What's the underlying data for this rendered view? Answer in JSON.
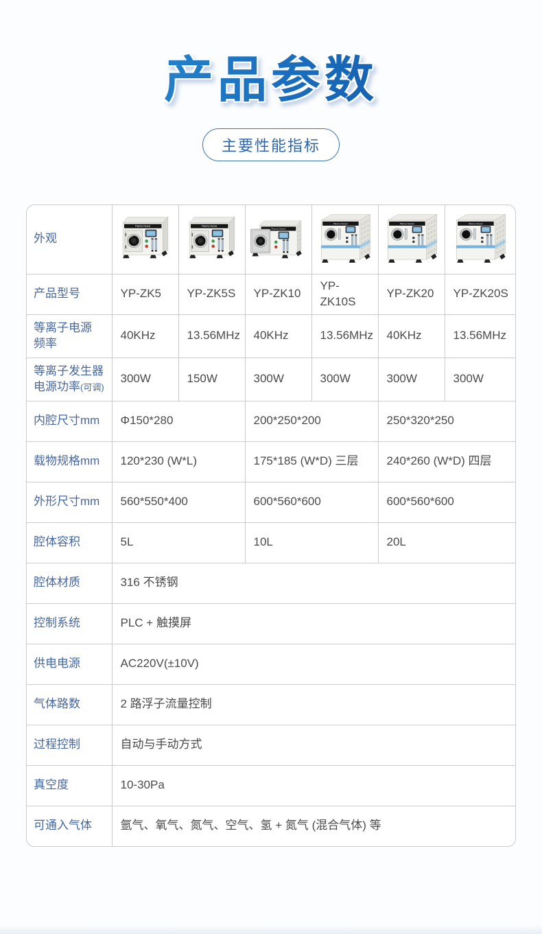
{
  "page": {
    "title": "产品参数",
    "badge": "主要性能指标"
  },
  "colors": {
    "accent": "#2f66ad",
    "label": "#46679f",
    "value": "#4a4a4a",
    "border": "#cccccc",
    "grad1": "#2e9ad8",
    "grad2": "#1a6cbc",
    "grad3": "#114e9d",
    "machine_stripe": "#74b3dd"
  },
  "table": {
    "appearance_label": "外观",
    "machine_brand": "Plasma Cleaner",
    "machine_types": [
      "small",
      "small",
      "small-open",
      "large",
      "large",
      "large"
    ],
    "models_label": "产品型号",
    "models": [
      "YP-ZK5",
      "YP-ZK5S",
      "YP-ZK10",
      "YP-ZK10S",
      "YP-ZK20",
      "YP-ZK20S"
    ],
    "rows6": [
      {
        "label": "等离子电源\n频率",
        "label_suffix": "",
        "values": [
          "40KHz",
          "13.56MHz",
          "40KHz",
          "13.56MHz",
          "40KHz",
          "13.56MHz"
        ]
      },
      {
        "label": "等离子发生器\n电源功率",
        "label_suffix": "(可调)",
        "values": [
          "300W",
          "150W",
          "300W",
          "300W",
          "300W",
          "300W"
        ]
      }
    ],
    "rows3": [
      {
        "label": "内腔尺寸mm",
        "values": [
          "Φ150*280",
          "200*250*200",
          "250*320*250"
        ]
      },
      {
        "label": "载物规格mm",
        "values": [
          "120*230 (W*L)",
          "175*185 (W*D) 三层",
          "240*260 (W*D) 四层"
        ]
      },
      {
        "label": "外形尺寸mm",
        "values": [
          "560*550*400",
          "600*560*600",
          "600*560*600"
        ]
      },
      {
        "label": "腔体容积",
        "values": [
          "5L",
          "10L",
          "20L"
        ]
      }
    ],
    "rows1": [
      {
        "label": "腔体材质",
        "value": "316 不锈钢"
      },
      {
        "label": "控制系统",
        "value": "PLC + 触摸屏"
      },
      {
        "label": "供电电源",
        "value": "AC220V(±10V)"
      },
      {
        "label": "气体路数",
        "value": "2 路浮子流量控制"
      },
      {
        "label": "过程控制",
        "value": "自动与手动方式"
      },
      {
        "label": "真空度",
        "value": "10-30Pa"
      },
      {
        "label": "可通入气体",
        "value": "氩气、氧气、氮气、空气、氢 + 氮气 (混合气体) 等"
      }
    ]
  }
}
